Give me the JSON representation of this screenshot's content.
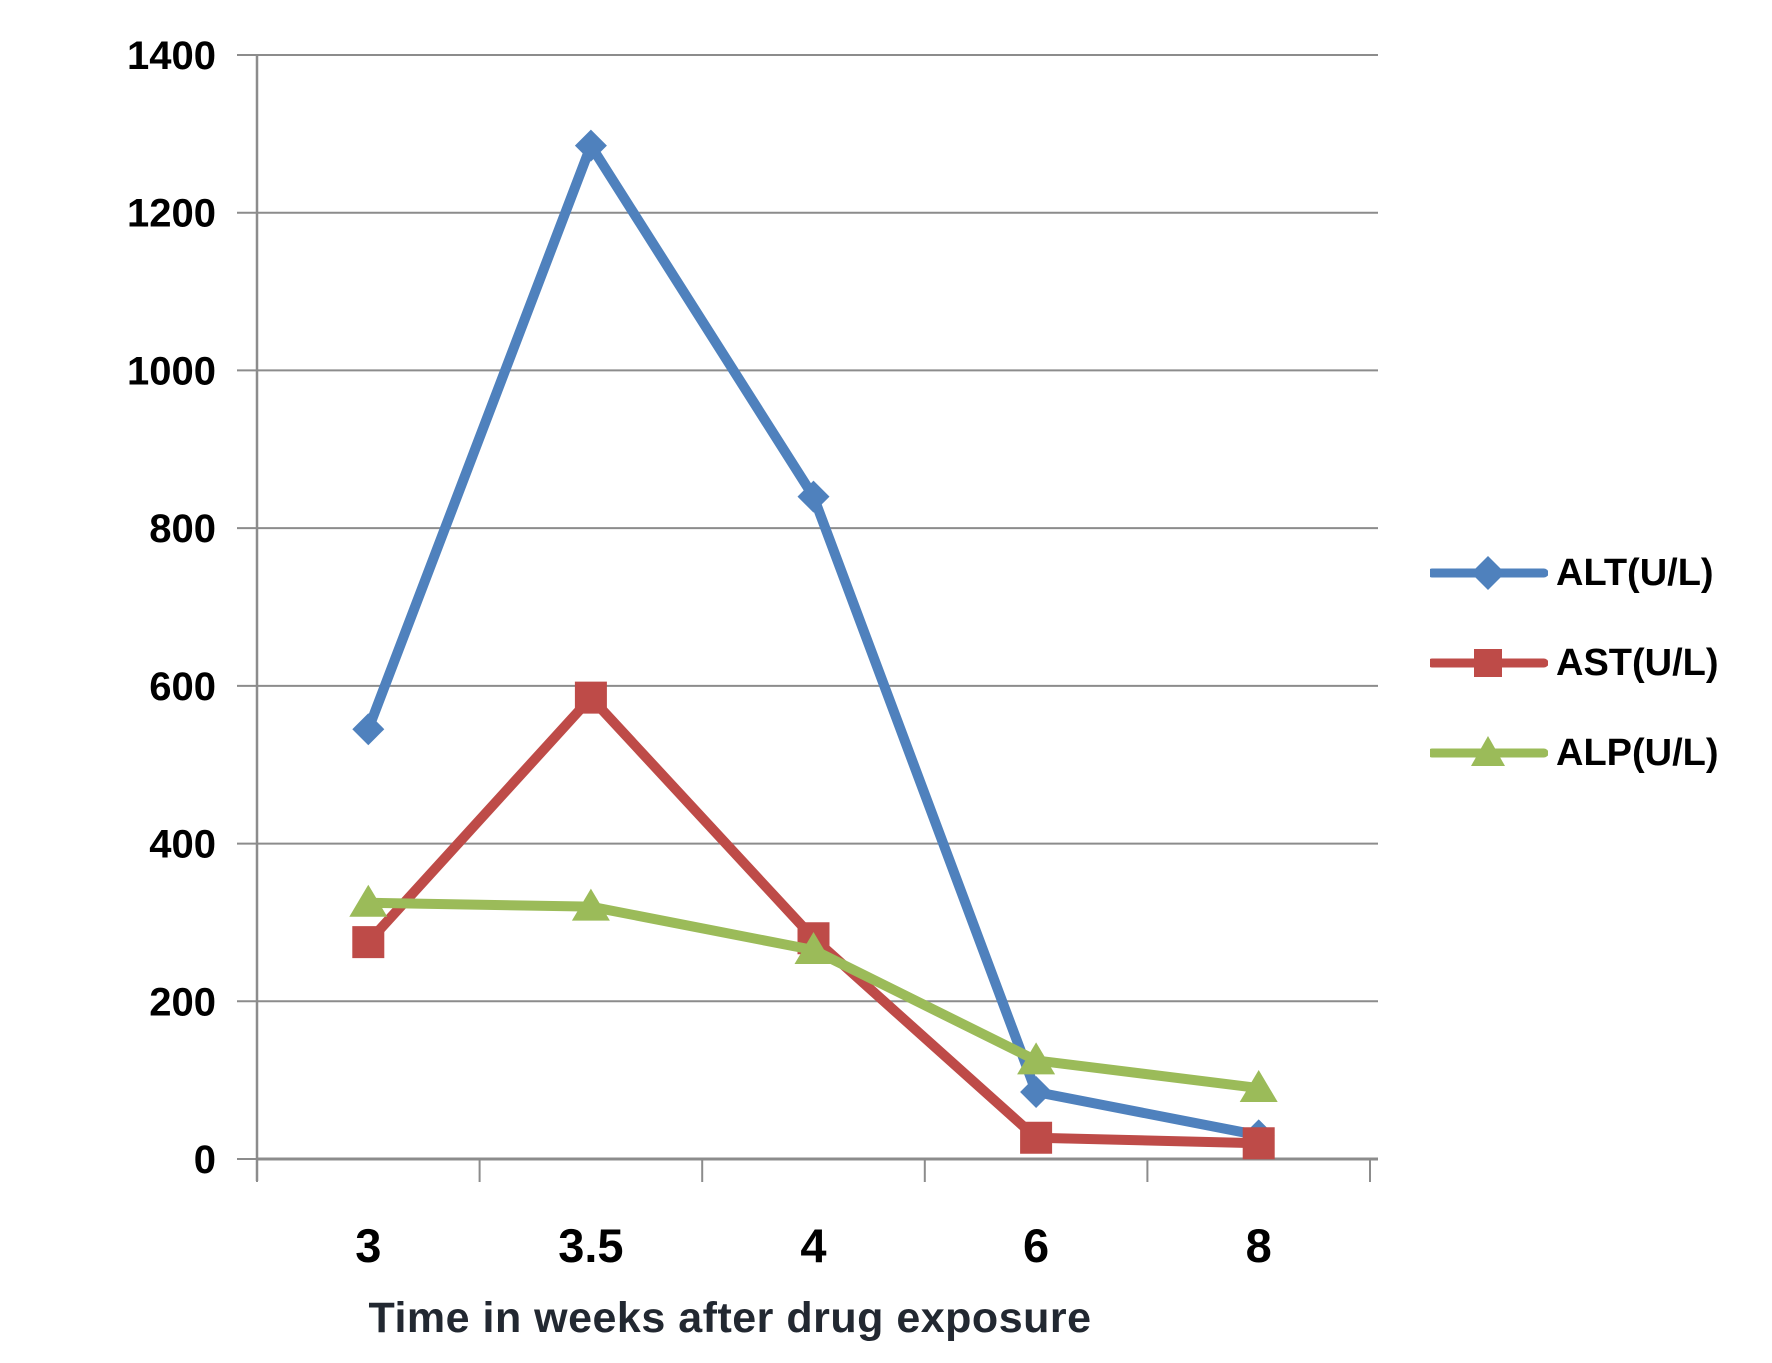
{
  "chart_data": {
    "type": "line",
    "categories": [
      "3",
      "3.5",
      "4",
      "6",
      "8"
    ],
    "series": [
      {
        "name": "ALT(U/L)",
        "color": "#4F81BD",
        "marker": "diamond",
        "values": [
          545,
          1285,
          840,
          85,
          30
        ]
      },
      {
        "name": "AST(U/L)",
        "color": "#BE4B48",
        "marker": "square",
        "values": [
          275,
          585,
          280,
          27,
          20
        ]
      },
      {
        "name": "ALP(U/L)",
        "color": "#9BBB59",
        "marker": "triangle",
        "values": [
          325,
          320,
          265,
          125,
          90
        ]
      }
    ],
    "title": "",
    "xlabel": "Time in weeks after drug exposure",
    "ylabel": "",
    "ylim": [
      0,
      1400
    ],
    "ytick_step": 200,
    "grid": true,
    "legend_position": "right",
    "axis_color": "#8c8c8c",
    "tick_label_color": "#000000"
  }
}
